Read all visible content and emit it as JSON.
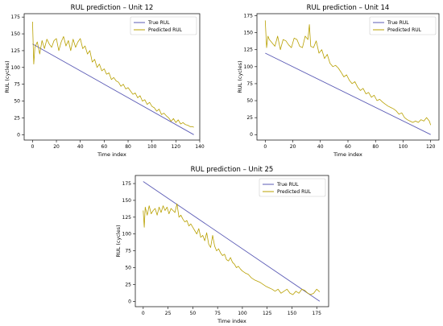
{
  "chart_data": [
    {
      "type": "line",
      "title": "RUL prediction – Unit 12",
      "xlabel": "Time index",
      "ylabel": "RUL (cycles)",
      "xlim": [
        -7,
        140
      ],
      "ylim": [
        -8,
        180
      ],
      "xticks": [
        0,
        20,
        40,
        60,
        80,
        100,
        120,
        140
      ],
      "yticks": [
        0,
        25,
        50,
        75,
        100,
        125,
        150,
        175
      ],
      "legend_position": "top-right",
      "series": [
        {
          "name": "True RUL",
          "color": "#5b5bb5",
          "x": [
            0,
            135
          ],
          "y": [
            135,
            0
          ]
        },
        {
          "name": "Predicted RUL",
          "color": "#b8a000",
          "x": [
            0,
            1,
            2,
            4,
            6,
            8,
            10,
            12,
            14,
            16,
            18,
            20,
            22,
            24,
            26,
            28,
            30,
            32,
            34,
            36,
            38,
            40,
            42,
            44,
            46,
            48,
            50,
            52,
            54,
            56,
            58,
            60,
            62,
            64,
            66,
            68,
            70,
            72,
            74,
            76,
            78,
            80,
            82,
            84,
            86,
            88,
            90,
            92,
            94,
            96,
            98,
            100,
            102,
            104,
            106,
            108,
            110,
            112,
            114,
            116,
            118,
            120,
            122,
            124,
            126,
            128,
            130,
            132,
            134,
            135
          ],
          "y": [
            168,
            105,
            130,
            138,
            120,
            140,
            128,
            142,
            135,
            130,
            140,
            143,
            125,
            138,
            146,
            132,
            140,
            125,
            142,
            130,
            138,
            143,
            128,
            132,
            120,
            125,
            108,
            112,
            100,
            105,
            95,
            98,
            90,
            92,
            82,
            85,
            80,
            78,
            72,
            75,
            68,
            70,
            65,
            60,
            62,
            55,
            58,
            50,
            52,
            45,
            48,
            42,
            40,
            35,
            38,
            30,
            32,
            28,
            25,
            20,
            24,
            18,
            22,
            16,
            18,
            15,
            14,
            12,
            12,
            11
          ]
        }
      ]
    },
    {
      "type": "line",
      "title": "RUL prediction – Unit 14",
      "xlabel": "Time index",
      "ylabel": "RUL (cycles)",
      "xlim": [
        -6,
        126
      ],
      "ylim": [
        -8,
        178
      ],
      "xticks": [
        0,
        20,
        40,
        60,
        80,
        100,
        120
      ],
      "yticks": [
        0,
        25,
        50,
        75,
        100,
        125,
        150,
        175
      ],
      "legend_position": "top-right",
      "series": [
        {
          "name": "True RUL",
          "color": "#5b5bb5",
          "x": [
            0,
            120
          ],
          "y": [
            120,
            0
          ]
        },
        {
          "name": "Predicted RUL",
          "color": "#b8a000",
          "x": [
            0,
            1,
            2,
            3,
            5,
            7,
            9,
            11,
            13,
            15,
            17,
            19,
            21,
            23,
            25,
            27,
            29,
            31,
            32,
            33,
            35,
            37,
            39,
            41,
            43,
            45,
            47,
            49,
            51,
            53,
            55,
            57,
            59,
            61,
            63,
            65,
            67,
            69,
            71,
            73,
            75,
            77,
            79,
            81,
            83,
            85,
            87,
            89,
            91,
            93,
            95,
            97,
            99,
            101,
            103,
            105,
            107,
            109,
            111,
            113,
            115,
            117,
            119,
            120
          ],
          "y": [
            168,
            128,
            145,
            140,
            135,
            130,
            145,
            125,
            140,
            138,
            132,
            128,
            142,
            140,
            130,
            128,
            145,
            140,
            162,
            130,
            128,
            138,
            120,
            125,
            112,
            118,
            105,
            100,
            102,
            98,
            92,
            85,
            88,
            80,
            75,
            78,
            70,
            65,
            68,
            60,
            62,
            55,
            58,
            50,
            52,
            48,
            45,
            42,
            40,
            38,
            35,
            30,
            32,
            25,
            22,
            20,
            18,
            20,
            18,
            22,
            20,
            25,
            20,
            14
          ]
        }
      ]
    },
    {
      "type": "line",
      "title": "RUL prediction – Unit 25",
      "xlabel": "Time index",
      "ylabel": "RUL (cycles)",
      "xlim": [
        -8,
        187
      ],
      "ylim": [
        -8,
        187
      ],
      "xticks": [
        0,
        25,
        50,
        75,
        100,
        125,
        150,
        175
      ],
      "yticks": [
        0,
        25,
        50,
        75,
        100,
        125,
        150,
        175
      ],
      "legend_position": "top-right",
      "series": [
        {
          "name": "True RUL",
          "color": "#5b5bb5",
          "x": [
            0,
            178
          ],
          "y": [
            178,
            0
          ]
        },
        {
          "name": "Predicted RUL",
          "color": "#b8a000",
          "x": [
            0,
            1,
            2,
            4,
            6,
            8,
            10,
            12,
            14,
            16,
            18,
            20,
            22,
            24,
            26,
            28,
            30,
            32,
            34,
            36,
            38,
            40,
            42,
            44,
            46,
            48,
            50,
            52,
            54,
            56,
            58,
            60,
            62,
            64,
            66,
            68,
            70,
            72,
            74,
            76,
            78,
            80,
            82,
            84,
            86,
            88,
            90,
            92,
            94,
            96,
            98,
            100,
            103,
            106,
            109,
            112,
            115,
            118,
            121,
            124,
            127,
            130,
            133,
            136,
            139,
            142,
            145,
            148,
            151,
            154,
            157,
            160,
            163,
            166,
            169,
            172,
            175,
            178
          ],
          "y": [
            135,
            110,
            140,
            128,
            142,
            130,
            135,
            138,
            128,
            140,
            132,
            142,
            135,
            140,
            130,
            138,
            135,
            132,
            145,
            125,
            128,
            122,
            118,
            120,
            112,
            115,
            110,
            105,
            100,
            108,
            95,
            98,
            90,
            102,
            85,
            80,
            98,
            82,
            75,
            78,
            72,
            68,
            70,
            62,
            60,
            65,
            58,
            55,
            50,
            52,
            48,
            45,
            42,
            40,
            35,
            32,
            30,
            28,
            25,
            22,
            20,
            18,
            15,
            18,
            12,
            15,
            18,
            12,
            10,
            15,
            12,
            18,
            16,
            12,
            10,
            12,
            18,
            14
          ]
        }
      ]
    }
  ]
}
